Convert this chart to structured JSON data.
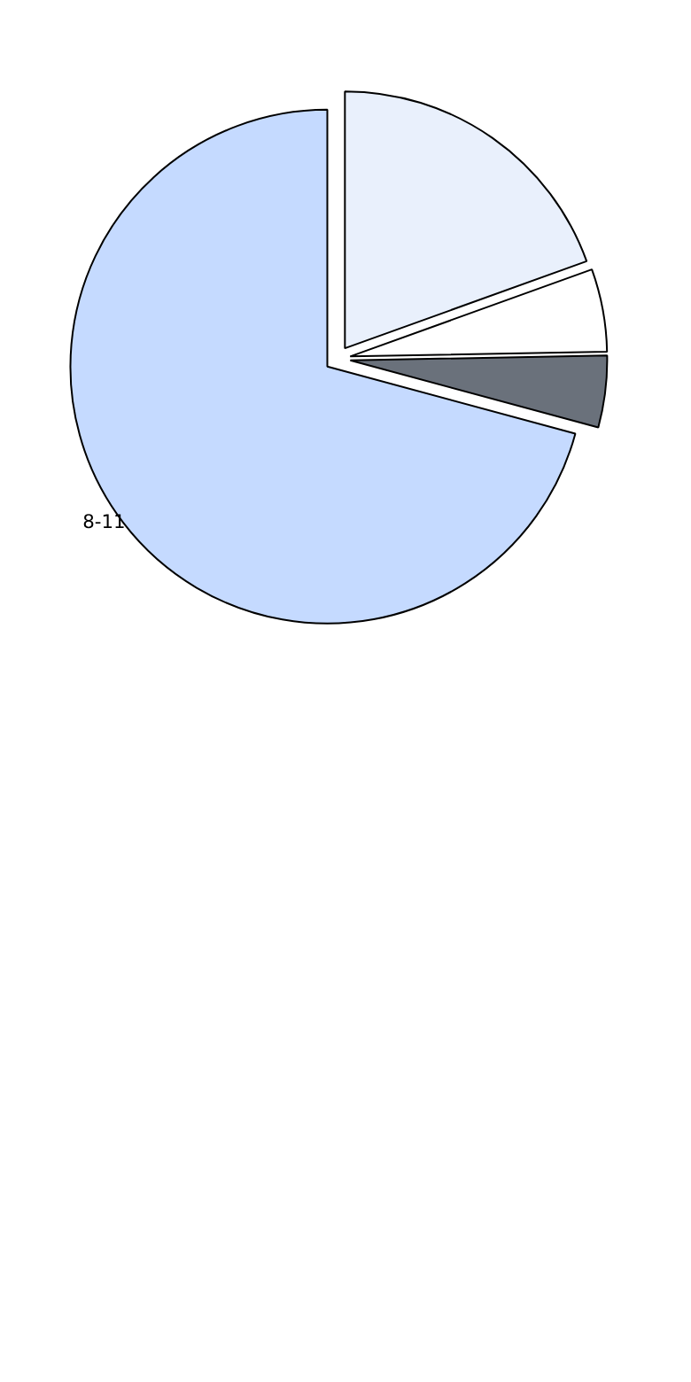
{
  "chart_data": {
    "type": "pie",
    "categories": [
      null,
      null,
      null,
      "8-11"
    ],
    "values": [
      19.5,
      5.2,
      4.5,
      70.8
    ],
    "colors": [
      "#e9f0fc",
      "#ffffff",
      "#6a717b",
      "#c5daff"
    ]
  }
}
